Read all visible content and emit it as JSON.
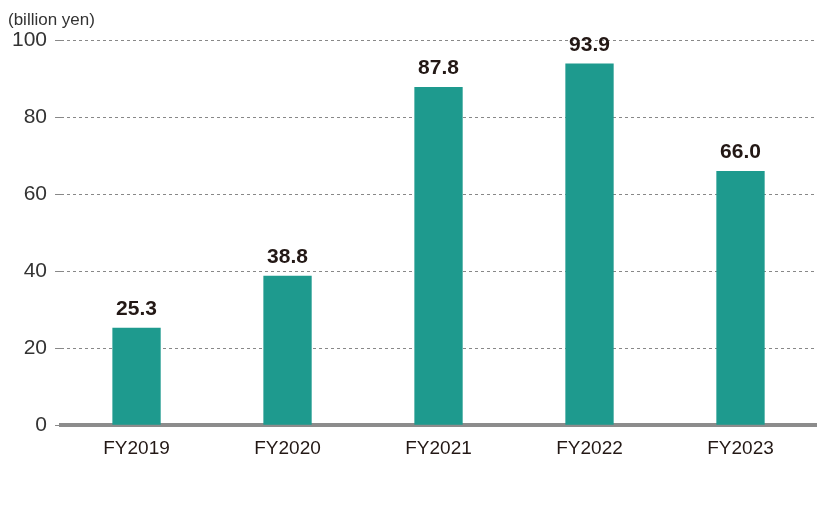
{
  "chart_data": {
    "type": "bar",
    "ylabel": "(billion yen)",
    "categories": [
      "FY2019",
      "FY2020",
      "FY2021",
      "FY2022",
      "FY2023"
    ],
    "values": [
      25.3,
      38.8,
      87.8,
      93.9,
      66.0
    ],
    "value_labels": [
      "25.3",
      "38.8",
      "87.8",
      "93.9",
      "66.0"
    ],
    "color": "#1e9a8e",
    "ylim": [
      0,
      100
    ],
    "yticks": [
      0,
      20,
      40,
      60,
      80,
      100
    ],
    "grid": true,
    "data_labels": true
  }
}
